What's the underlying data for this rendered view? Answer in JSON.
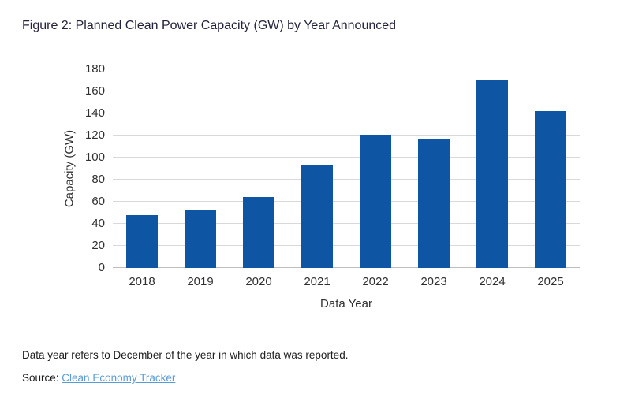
{
  "figure": {
    "title": "Figure 2: Planned Clean Power Capacity (GW) by Year Announced",
    "footnote": "Data year refers to December of the year in which data was reported.",
    "source_label": "Source:",
    "source_link_text": "Clean Economy Tracker"
  },
  "chart_data": {
    "type": "bar",
    "title": "Figure 2: Planned Clean Power Capacity (GW) by Year Announced",
    "categories": [
      "2018",
      "2019",
      "2020",
      "2021",
      "2022",
      "2023",
      "2024",
      "2025"
    ],
    "values": [
      48,
      52,
      64,
      93,
      121,
      117,
      171,
      142
    ],
    "xlabel": "Data Year",
    "ylabel": "Capacity (GW)",
    "ylim": [
      0,
      180
    ],
    "yticks": [
      0,
      20,
      40,
      60,
      80,
      100,
      120,
      140,
      160,
      180
    ],
    "grid": true,
    "legend": "none",
    "colors": {
      "bar": "#0E55A4",
      "gridline": "#D9D9D9",
      "axis_line": "#BFBFBF",
      "tick_text": "#303030",
      "title_text": "#23233B",
      "link": "#5B9BD5"
    }
  }
}
